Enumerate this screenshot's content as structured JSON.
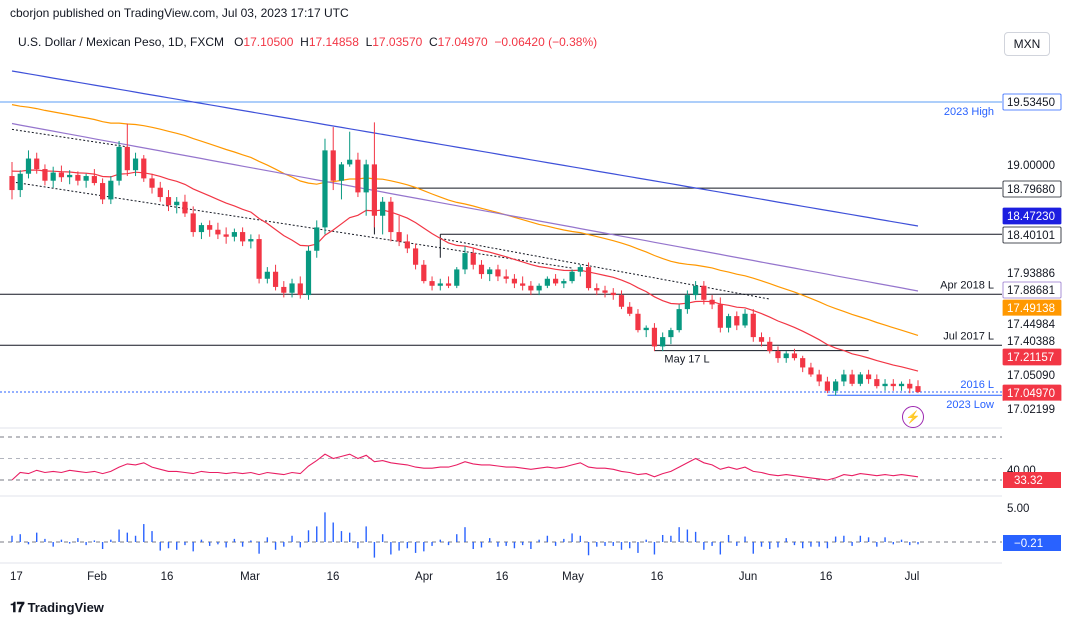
{
  "header": {
    "published": "cborjon published on TradingView.com, Jul 03, 2023 17:17 UTC"
  },
  "legend": {
    "symbol": "U.S. Dollar / Mexican Peso, 1D, FXCM",
    "o_label": "O",
    "o": "17.10500",
    "h_label": "H",
    "h": "17.14858",
    "l_label": "L",
    "l": "17.03570",
    "c_label": "C",
    "c": "17.04970",
    "change": "−0.06420 (−0.38%)"
  },
  "unit_badge": "MXN",
  "colors": {
    "up": "#089981",
    "down": "#f23645",
    "ema20": "#f23645",
    "ema50": "#ff9800",
    "ema100": "#9575cd",
    "ema200": "#3f51d9",
    "rsi": "#e91e63",
    "macd": "#2962ff"
  },
  "footer": {
    "brand": "TradingView"
  },
  "chart_data": {
    "type": "candlestick",
    "x_ticks": [
      "17",
      "Feb",
      "16",
      "Mar",
      "16",
      "Apr",
      "16",
      "May",
      "16",
      "Jun",
      "16",
      "Jul"
    ],
    "price_axis": {
      "ticks": [
        "19.00000"
      ],
      "badges": [
        {
          "value": "19.53450",
          "style": "blue-dark"
        },
        {
          "value": "18.79680",
          "style": "dark"
        },
        {
          "value": "18.47230",
          "style": "navy"
        },
        {
          "value": "18.40101",
          "style": "dark"
        },
        {
          "value": "17.93886",
          "style": "plain"
        },
        {
          "value": "17.88681",
          "style": "purple"
        },
        {
          "value": "17.49138",
          "style": "orange"
        },
        {
          "value": "17.44984",
          "style": "plain"
        },
        {
          "value": "17.40388",
          "style": "plain"
        },
        {
          "value": "17.21157",
          "style": "red"
        },
        {
          "value": "17.05090",
          "style": "plain"
        },
        {
          "value": "17.04970",
          "style": "red"
        },
        {
          "value": "17.02199",
          "style": "plain"
        }
      ]
    },
    "levels": [
      {
        "label": "2023 High",
        "price": 19.5345
      },
      {
        "label": "Apr 2018 L",
        "price": 17.88681
      },
      {
        "label": "Jul 2017 L",
        "price": 17.44984
      },
      {
        "label": "May 17 L",
        "price": 17.40388
      },
      {
        "label": "2016 L",
        "price": 17.0509
      },
      {
        "label": "2023 Low",
        "price": 17.02199
      }
    ],
    "candles": [
      [
        18.9,
        19.02,
        18.7,
        18.78
      ],
      [
        18.78,
        18.95,
        18.72,
        18.92
      ],
      [
        18.92,
        19.12,
        18.88,
        19.05
      ],
      [
        19.05,
        19.1,
        18.92,
        18.96
      ],
      [
        18.96,
        19.0,
        18.82,
        18.86
      ],
      [
        18.86,
        18.98,
        18.8,
        18.93
      ],
      [
        18.93,
        18.99,
        18.85,
        18.89
      ],
      [
        18.89,
        18.95,
        18.83,
        18.91
      ],
      [
        18.91,
        18.94,
        18.82,
        18.86
      ],
      [
        18.86,
        18.92,
        18.8,
        18.9
      ],
      [
        18.9,
        18.96,
        18.82,
        18.84
      ],
      [
        18.84,
        18.88,
        18.66,
        18.7
      ],
      [
        18.7,
        18.9,
        18.66,
        18.86
      ],
      [
        18.86,
        19.2,
        18.82,
        19.15
      ],
      [
        19.15,
        19.35,
        18.9,
        18.95
      ],
      [
        18.95,
        19.1,
        18.9,
        19.05
      ],
      [
        19.05,
        19.08,
        18.85,
        18.88
      ],
      [
        18.88,
        18.92,
        18.75,
        18.8
      ],
      [
        18.8,
        18.85,
        18.68,
        18.72
      ],
      [
        18.72,
        18.78,
        18.6,
        18.65
      ],
      [
        18.65,
        18.72,
        18.58,
        18.68
      ],
      [
        18.68,
        18.74,
        18.55,
        18.58
      ],
      [
        18.58,
        18.64,
        18.38,
        18.42
      ],
      [
        18.42,
        18.5,
        18.36,
        18.48
      ],
      [
        18.48,
        18.52,
        18.38,
        18.44
      ],
      [
        18.44,
        18.5,
        18.36,
        18.4
      ],
      [
        18.4,
        18.46,
        18.32,
        18.38
      ],
      [
        18.38,
        18.45,
        18.34,
        18.42
      ],
      [
        18.42,
        18.46,
        18.3,
        18.34
      ],
      [
        18.34,
        18.4,
        18.28,
        18.36
      ],
      [
        18.36,
        18.4,
        17.98,
        18.02
      ],
      [
        18.02,
        18.12,
        17.98,
        18.08
      ],
      [
        18.08,
        18.14,
        17.92,
        17.95
      ],
      [
        17.95,
        18.0,
        17.86,
        17.9
      ],
      [
        17.9,
        18.02,
        17.86,
        17.98
      ],
      [
        17.98,
        18.04,
        17.85,
        17.88
      ],
      [
        17.88,
        18.3,
        17.84,
        18.26
      ],
      [
        18.26,
        18.52,
        18.2,
        18.46
      ],
      [
        18.46,
        19.22,
        18.4,
        19.12
      ],
      [
        19.12,
        19.32,
        18.78,
        18.86
      ],
      [
        18.86,
        19.02,
        18.7,
        19.0
      ],
      [
        19.0,
        19.28,
        18.98,
        19.04
      ],
      [
        19.04,
        19.1,
        18.72,
        18.76
      ],
      [
        18.76,
        19.04,
        18.56,
        19.0
      ],
      [
        19.0,
        19.36,
        18.46,
        18.56
      ],
      [
        18.56,
        18.72,
        18.4,
        18.68
      ],
      [
        18.68,
        18.72,
        18.34,
        18.42
      ],
      [
        18.42,
        18.56,
        18.3,
        18.34
      ],
      [
        18.34,
        18.4,
        18.24,
        18.28
      ],
      [
        18.28,
        18.32,
        18.1,
        18.14
      ],
      [
        18.14,
        18.18,
        17.98,
        18.0
      ],
      [
        18.0,
        18.04,
        17.92,
        17.96
      ],
      [
        17.96,
        18.02,
        17.92,
        17.98
      ],
      [
        17.98,
        18.04,
        17.94,
        17.96
      ],
      [
        17.96,
        18.12,
        17.94,
        18.1
      ],
      [
        18.1,
        18.3,
        18.06,
        18.24
      ],
      [
        18.24,
        18.28,
        18.1,
        18.14
      ],
      [
        18.14,
        18.18,
        18.02,
        18.06
      ],
      [
        18.06,
        18.12,
        18.0,
        18.1
      ],
      [
        18.1,
        18.14,
        18.0,
        18.04
      ],
      [
        18.04,
        18.1,
        17.98,
        18.02
      ],
      [
        18.02,
        18.06,
        17.94,
        17.98
      ],
      [
        17.98,
        18.04,
        17.92,
        17.96
      ],
      [
        17.96,
        18.0,
        17.88,
        17.92
      ],
      [
        17.92,
        17.98,
        17.88,
        17.96
      ],
      [
        17.96,
        18.04,
        17.94,
        18.02
      ],
      [
        18.02,
        18.06,
        17.96,
        17.98
      ],
      [
        17.98,
        18.02,
        17.94,
        18.0
      ],
      [
        18.0,
        18.1,
        17.98,
        18.08
      ],
      [
        18.08,
        18.14,
        18.04,
        18.12
      ],
      [
        18.12,
        18.16,
        17.92,
        17.94
      ],
      [
        17.94,
        17.98,
        17.88,
        17.92
      ],
      [
        17.92,
        17.96,
        17.86,
        17.9
      ],
      [
        17.9,
        17.94,
        17.84,
        17.88
      ],
      [
        17.88,
        17.92,
        17.76,
        17.78
      ],
      [
        17.78,
        17.82,
        17.7,
        17.72
      ],
      [
        17.72,
        17.76,
        17.56,
        17.58
      ],
      [
        17.58,
        17.62,
        17.52,
        17.6
      ],
      [
        17.6,
        17.64,
        17.4,
        17.44
      ],
      [
        17.44,
        17.56,
        17.4,
        17.52
      ],
      [
        17.52,
        17.6,
        17.46,
        17.58
      ],
      [
        17.58,
        17.8,
        17.56,
        17.76
      ],
      [
        17.76,
        17.92,
        17.72,
        17.88
      ],
      [
        17.88,
        18.0,
        17.84,
        17.96
      ],
      [
        17.96,
        18.0,
        17.8,
        17.84
      ],
      [
        17.84,
        17.88,
        17.76,
        17.8
      ],
      [
        17.8,
        17.86,
        17.56,
        17.6
      ],
      [
        17.6,
        17.72,
        17.56,
        17.7
      ],
      [
        17.7,
        17.74,
        17.58,
        17.62
      ],
      [
        17.62,
        17.76,
        17.6,
        17.72
      ],
      [
        17.72,
        17.76,
        17.48,
        17.52
      ],
      [
        17.52,
        17.56,
        17.44,
        17.48
      ],
      [
        17.48,
        17.52,
        17.38,
        17.4
      ],
      [
        17.4,
        17.44,
        17.3,
        17.34
      ],
      [
        17.34,
        17.4,
        17.3,
        17.38
      ],
      [
        17.38,
        17.42,
        17.32,
        17.34
      ],
      [
        17.34,
        17.36,
        17.22,
        17.26
      ],
      [
        17.26,
        17.3,
        17.18,
        17.2
      ],
      [
        17.2,
        17.24,
        17.1,
        17.14
      ],
      [
        17.14,
        17.18,
        17.04,
        17.06
      ],
      [
        17.06,
        17.16,
        17.02,
        17.14
      ],
      [
        17.14,
        17.24,
        17.1,
        17.2
      ],
      [
        17.2,
        17.24,
        17.1,
        17.12
      ],
      [
        17.12,
        17.22,
        17.1,
        17.2
      ],
      [
        17.2,
        17.24,
        17.12,
        17.16
      ],
      [
        17.16,
        17.2,
        17.08,
        17.1
      ],
      [
        17.1,
        17.16,
        17.06,
        17.12
      ],
      [
        17.12,
        17.16,
        17.06,
        17.1
      ],
      [
        17.1,
        17.14,
        17.06,
        17.12
      ],
      [
        17.12,
        17.16,
        17.04,
        17.08
      ],
      [
        17.1,
        17.15,
        17.04,
        17.05
      ]
    ],
    "rsi": {
      "current": "33.32",
      "tick": "40.00",
      "values": [
        30,
        37,
        36,
        39,
        37,
        38,
        37,
        39,
        38,
        37,
        38,
        36,
        38,
        42,
        45,
        44,
        46,
        42,
        40,
        38,
        38,
        37,
        36,
        38,
        37,
        37,
        36,
        37,
        36,
        37,
        35,
        37,
        36,
        35,
        37,
        36,
        43,
        48,
        54,
        50,
        52,
        54,
        50,
        53,
        47,
        48,
        46,
        45,
        44,
        42,
        41,
        41,
        42,
        42,
        44,
        47,
        45,
        44,
        44,
        43,
        42,
        42,
        41,
        40,
        41,
        42,
        41,
        42,
        44,
        46,
        42,
        41,
        41,
        40,
        38,
        37,
        35,
        36,
        33,
        36,
        38,
        42,
        46,
        50,
        46,
        44,
        40,
        42,
        40,
        42,
        38,
        37,
        35,
        34,
        35,
        34,
        33,
        32,
        31,
        30,
        32,
        35,
        34,
        36,
        35,
        34,
        35,
        34,
        35,
        34,
        33
      ]
    },
    "macd": {
      "current": "−0.21",
      "tick": "5.00",
      "values": [
        0.8,
        1.0,
        -0.3,
        1.2,
        0.4,
        -0.6,
        0.3,
        -0.2,
        0.5,
        -0.4,
        0.2,
        -0.9,
        0.3,
        1.6,
        1.2,
        0.8,
        2.3,
        1.4,
        -1.1,
        -0.8,
        -1.0,
        -0.4,
        -1.2,
        0.3,
        -0.5,
        -0.3,
        -0.7,
        0.4,
        -0.6,
        0.2,
        -1.5,
        0.6,
        -1.0,
        -0.6,
        0.8,
        -0.7,
        1.5,
        2.0,
        3.8,
        2.5,
        1.4,
        1.2,
        -0.8,
        2.0,
        -2.0,
        1.0,
        -1.6,
        -1.1,
        -0.8,
        -1.4,
        -1.2,
        -0.5,
        0.3,
        -0.4,
        1.0,
        1.9,
        -0.9,
        -0.7,
        0.5,
        -0.6,
        -0.5,
        -0.8,
        -0.4,
        -0.9,
        0.3,
        0.8,
        -0.5,
        0.4,
        1.1,
        0.8,
        -1.7,
        -0.6,
        -0.5,
        -0.5,
        -1.0,
        -0.8,
        -1.4,
        0.3,
        -1.6,
        0.9,
        0.8,
        1.9,
        1.6,
        1.3,
        -1.0,
        -0.5,
        -1.6,
        0.9,
        -0.5,
        0.7,
        -1.5,
        -0.6,
        -0.9,
        -0.7,
        0.5,
        -0.4,
        -0.8,
        -0.6,
        -0.6,
        -0.8,
        0.7,
        0.8,
        -0.5,
        0.8,
        0.6,
        -0.6,
        0.6,
        -0.3,
        0.3,
        -0.4,
        -0.3
      ]
    }
  }
}
